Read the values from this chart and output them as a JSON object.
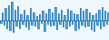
{
  "values": [
    -3,
    8,
    -5,
    12,
    -8,
    15,
    -10,
    18,
    -12,
    10,
    -6,
    14,
    -8,
    6,
    -4,
    10,
    -7,
    5,
    -9,
    12,
    -5,
    8,
    -6,
    4,
    -8,
    6,
    -3,
    9,
    -11,
    7,
    -4,
    11,
    -6,
    8,
    -5,
    13,
    -9,
    7,
    -4,
    10,
    -7,
    5,
    -8,
    11,
    -6,
    9,
    -4,
    7,
    -10,
    6,
    -8,
    12,
    -5,
    9,
    -7,
    11,
    -6,
    8,
    -9,
    5,
    -11,
    7,
    -5,
    10,
    -8,
    13,
    -6,
    9,
    -4,
    8
  ],
  "line_color": "#1a6faf",
  "fill_color": "#5aabdb",
  "fill_alpha": 1.0,
  "background_color": "#f0f8ff",
  "linewidth": 0.6,
  "baseline": 0
}
